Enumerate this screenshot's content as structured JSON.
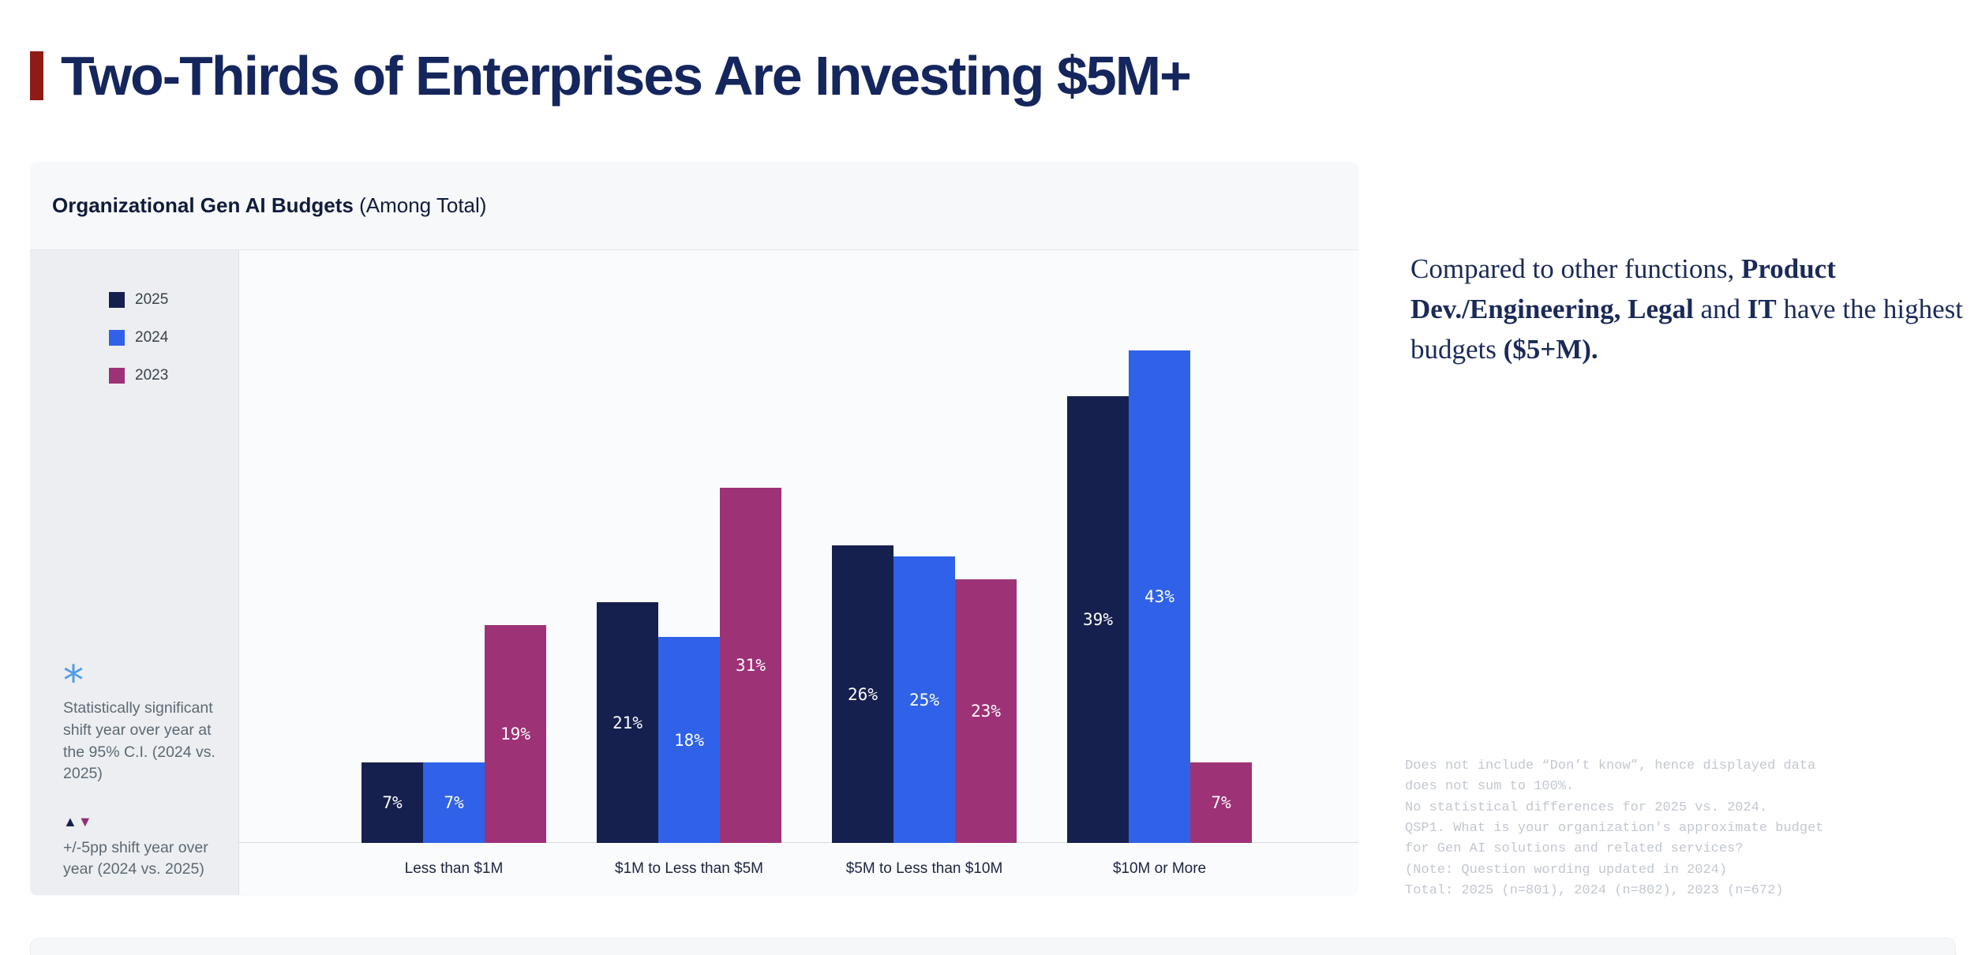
{
  "page": {
    "title": "Two-Thirds of Enterprises Are Investing $5M+"
  },
  "chart_panel": {
    "heading_bold": "Organizational Gen AI Budgets",
    "heading_rest": " (Among Total)",
    "notes": {
      "significance": {
        "symbol": "*",
        "text": "Statistically significant shift year over year at the 95% C.I. (2024 vs. 2025)"
      },
      "shift": {
        "symbol_up": "▲",
        "symbol_down": "▼",
        "text": "+/-5pp shift year over year (2024 vs. 2025)"
      }
    }
  },
  "chart_data": {
    "type": "bar",
    "title": "Organizational Gen AI Budgets (Among Total)",
    "categories": [
      "Less than $1M",
      "$1M to Less than $5M",
      "$5M to Less than $10M",
      "$10M or More"
    ],
    "series": [
      {
        "name": "2025",
        "color": "#16204e",
        "values": [
          7,
          21,
          26,
          39
        ]
      },
      {
        "name": "2024",
        "color": "#2f62e8",
        "values": [
          7,
          18,
          25,
          43
        ]
      },
      {
        "name": "2023",
        "color": "#9e3276",
        "values": [
          19,
          31,
          23,
          7
        ]
      }
    ],
    "value_suffix": "%",
    "ylim": [
      0,
      50
    ],
    "grid": false,
    "legend_position": "left",
    "value_labels": "inside-center"
  },
  "insight": {
    "segments": [
      {
        "text": "Compared to other functions, ",
        "bold": false
      },
      {
        "text": "Product Dev./Engineering, Legal",
        "bold": true
      },
      {
        "text": " and ",
        "bold": false
      },
      {
        "text": "IT",
        "bold": true
      },
      {
        "text": " have the highest budgets ",
        "bold": false
      },
      {
        "text": "($5+M).",
        "bold": true
      }
    ]
  },
  "footnotes": [
    "Does not include “Don’t know”, hence displayed data",
    "does not sum to 100%.",
    "No statistical differences for 2025 vs. 2024.",
    "QSP1. What is your organization's approximate budget",
    "for Gen AI solutions and related services?",
    "(Note: Question wording updated in 2024)",
    "Total: 2025 (n=801), 2024 (n=802), 2023 (n=672)"
  ]
}
